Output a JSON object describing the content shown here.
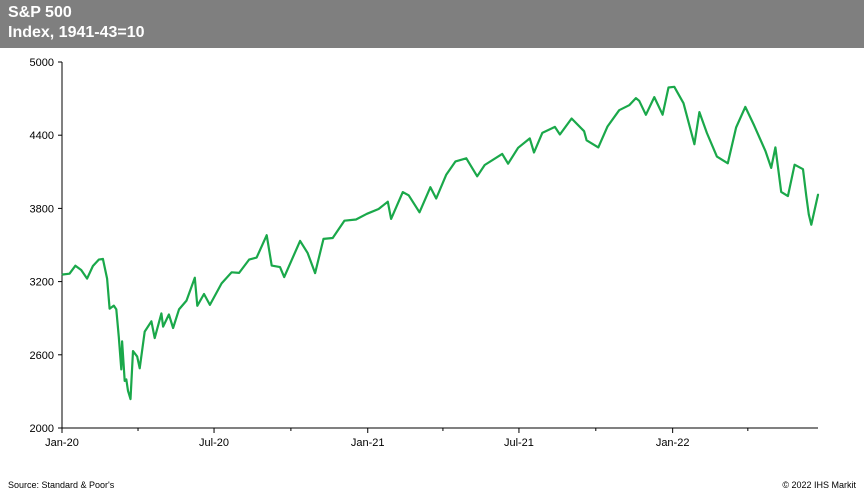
{
  "header": {
    "title": "S&P 500",
    "subtitle": "Index, 1941-43=10"
  },
  "footer": {
    "source": "Source: Standard & Poor's",
    "credit": "© 2022  IHS Markit"
  },
  "colors": {
    "header_bg": "#7f7f7f",
    "line": "#1aa84a",
    "axis": "#000000"
  },
  "chart_data": {
    "type": "line",
    "title": "S&P 500",
    "subtitle": "Index, 1941-43=10",
    "xlabel": "",
    "ylabel": "",
    "grid": false,
    "ylim": [
      2000,
      5000
    ],
    "xlim": [
      "2020-01-01",
      "2022-06-24"
    ],
    "y_ticks": [
      2000,
      2600,
      3200,
      3800,
      4400,
      5000
    ],
    "x_ticks": [
      {
        "date": "2020-01-01",
        "label": "Jan-20"
      },
      {
        "date": "2020-07-01",
        "label": "Jul-20"
      },
      {
        "date": "2021-01-01",
        "label": "Jan-21"
      },
      {
        "date": "2021-07-01",
        "label": "Jul-21"
      },
      {
        "date": "2022-01-01",
        "label": "Jan-22"
      }
    ],
    "series": [
      {
        "values": [
          [
            "2020-01-02",
            3258
          ],
          [
            "2020-01-10",
            3265
          ],
          [
            "2020-01-17",
            3330
          ],
          [
            "2020-01-24",
            3295
          ],
          [
            "2020-01-31",
            3225
          ],
          [
            "2020-02-07",
            3328
          ],
          [
            "2020-02-14",
            3380
          ],
          [
            "2020-02-19",
            3386
          ],
          [
            "2020-02-24",
            3225
          ],
          [
            "2020-02-27",
            2978
          ],
          [
            "2020-03-03",
            3003
          ],
          [
            "2020-03-06",
            2972
          ],
          [
            "2020-03-09",
            2746
          ],
          [
            "2020-03-12",
            2480
          ],
          [
            "2020-03-13",
            2711
          ],
          [
            "2020-03-16",
            2386
          ],
          [
            "2020-03-18",
            2398
          ],
          [
            "2020-03-20",
            2305
          ],
          [
            "2020-03-23",
            2237
          ],
          [
            "2020-03-26",
            2630
          ],
          [
            "2020-03-31",
            2585
          ],
          [
            "2020-04-03",
            2489
          ],
          [
            "2020-04-09",
            2790
          ],
          [
            "2020-04-17",
            2875
          ],
          [
            "2020-04-21",
            2737
          ],
          [
            "2020-04-29",
            2939
          ],
          [
            "2020-05-01",
            2831
          ],
          [
            "2020-05-08",
            2930
          ],
          [
            "2020-05-13",
            2820
          ],
          [
            "2020-05-20",
            2972
          ],
          [
            "2020-05-29",
            3044
          ],
          [
            "2020-06-08",
            3232
          ],
          [
            "2020-06-11",
            3002
          ],
          [
            "2020-06-19",
            3098
          ],
          [
            "2020-06-26",
            3009
          ],
          [
            "2020-07-10",
            3185
          ],
          [
            "2020-07-22",
            3276
          ],
          [
            "2020-07-31",
            3271
          ],
          [
            "2020-08-12",
            3380
          ],
          [
            "2020-08-21",
            3397
          ],
          [
            "2020-09-02",
            3580
          ],
          [
            "2020-09-08",
            3331
          ],
          [
            "2020-09-18",
            3319
          ],
          [
            "2020-09-23",
            3237
          ],
          [
            "2020-10-12",
            3534
          ],
          [
            "2020-10-21",
            3435
          ],
          [
            "2020-10-30",
            3270
          ],
          [
            "2020-11-09",
            3550
          ],
          [
            "2020-11-20",
            3557
          ],
          [
            "2020-12-04",
            3699
          ],
          [
            "2020-12-18",
            3709
          ],
          [
            "2020-12-31",
            3756
          ],
          [
            "2021-01-14",
            3795
          ],
          [
            "2021-01-25",
            3855
          ],
          [
            "2021-01-29",
            3714
          ],
          [
            "2021-02-12",
            3934
          ],
          [
            "2021-02-19",
            3907
          ],
          [
            "2021-03-04",
            3768
          ],
          [
            "2021-03-17",
            3974
          ],
          [
            "2021-03-24",
            3881
          ],
          [
            "2021-04-05",
            4077
          ],
          [
            "2021-04-16",
            4185
          ],
          [
            "2021-04-29",
            4211
          ],
          [
            "2021-05-12",
            4063
          ],
          [
            "2021-05-21",
            4156
          ],
          [
            "2021-06-11",
            4247
          ],
          [
            "2021-06-18",
            4166
          ],
          [
            "2021-06-30",
            4297
          ],
          [
            "2021-07-14",
            4374
          ],
          [
            "2021-07-19",
            4258
          ],
          [
            "2021-07-29",
            4419
          ],
          [
            "2021-08-13",
            4468
          ],
          [
            "2021-08-19",
            4406
          ],
          [
            "2021-09-02",
            4537
          ],
          [
            "2021-09-17",
            4433
          ],
          [
            "2021-09-20",
            4358
          ],
          [
            "2021-10-04",
            4300
          ],
          [
            "2021-10-15",
            4471
          ],
          [
            "2021-10-29",
            4605
          ],
          [
            "2021-11-10",
            4646
          ],
          [
            "2021-11-18",
            4704
          ],
          [
            "2021-11-22",
            4682
          ],
          [
            "2021-11-30",
            4567
          ],
          [
            "2021-12-10",
            4712
          ],
          [
            "2021-12-20",
            4568
          ],
          [
            "2021-12-27",
            4791
          ],
          [
            "2022-01-03",
            4797
          ],
          [
            "2022-01-14",
            4662
          ],
          [
            "2022-01-27",
            4326
          ],
          [
            "2022-02-02",
            4589
          ],
          [
            "2022-02-11",
            4418
          ],
          [
            "2022-02-23",
            4225
          ],
          [
            "2022-03-08",
            4170
          ],
          [
            "2022-03-18",
            4463
          ],
          [
            "2022-03-29",
            4632
          ],
          [
            "2022-04-08",
            4488
          ],
          [
            "2022-04-22",
            4271
          ],
          [
            "2022-04-29",
            4132
          ],
          [
            "2022-05-04",
            4300
          ],
          [
            "2022-05-11",
            3935
          ],
          [
            "2022-05-19",
            3901
          ],
          [
            "2022-05-27",
            4158
          ],
          [
            "2022-06-06",
            4121
          ],
          [
            "2022-06-10",
            3901
          ],
          [
            "2022-06-13",
            3750
          ],
          [
            "2022-06-16",
            3666
          ],
          [
            "2022-06-24",
            3912
          ]
        ]
      }
    ]
  }
}
